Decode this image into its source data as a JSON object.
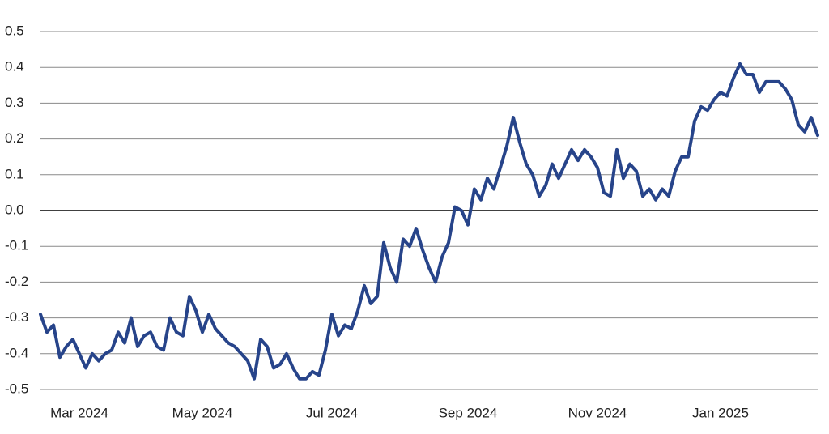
{
  "chart_data": {
    "type": "line",
    "categories": [
      null,
      null,
      null,
      null,
      null,
      null,
      "Mar 2024",
      null,
      null,
      null,
      null,
      null,
      null,
      null,
      null,
      null,
      null,
      null,
      null,
      null,
      null,
      null,
      null,
      null,
      null,
      "May 2024",
      null,
      null,
      null,
      null,
      null,
      null,
      null,
      null,
      null,
      null,
      null,
      null,
      null,
      null,
      null,
      null,
      null,
      null,
      null,
      "Jul 2024",
      null,
      null,
      null,
      null,
      null,
      null,
      null,
      null,
      null,
      null,
      null,
      null,
      null,
      null,
      null,
      null,
      null,
      null,
      null,
      null,
      "Sep 2024",
      null,
      null,
      null,
      null,
      null,
      null,
      null,
      null,
      null,
      null,
      null,
      null,
      null,
      null,
      null,
      null,
      null,
      null,
      null,
      "Nov 2024",
      null,
      null,
      null,
      null,
      null,
      null,
      null,
      null,
      null,
      null,
      null,
      null,
      null,
      null,
      null,
      null,
      null,
      null,
      "Jan 2025",
      null,
      null,
      null,
      null,
      null,
      null,
      null,
      null,
      null,
      null,
      null,
      null,
      null,
      null,
      null
    ],
    "values": [
      -0.29,
      -0.34,
      -0.32,
      -0.41,
      -0.38,
      -0.36,
      -0.4,
      -0.44,
      -0.4,
      -0.42,
      -0.4,
      -0.39,
      -0.34,
      -0.37,
      -0.3,
      -0.38,
      -0.35,
      -0.34,
      -0.38,
      -0.39,
      -0.3,
      -0.34,
      -0.35,
      -0.24,
      -0.28,
      -0.34,
      -0.29,
      -0.33,
      -0.35,
      -0.37,
      -0.38,
      -0.4,
      -0.42,
      -0.47,
      -0.36,
      -0.38,
      -0.44,
      -0.43,
      -0.4,
      -0.44,
      -0.47,
      -0.47,
      -0.45,
      -0.46,
      -0.39,
      -0.29,
      -0.35,
      -0.32,
      -0.33,
      -0.28,
      -0.21,
      -0.26,
      -0.24,
      -0.09,
      -0.16,
      -0.2,
      -0.08,
      -0.1,
      -0.05,
      -0.11,
      -0.16,
      -0.2,
      -0.13,
      -0.09,
      0.01,
      0.0,
      -0.04,
      0.06,
      0.03,
      0.09,
      0.06,
      0.12,
      0.18,
      0.26,
      0.19,
      0.13,
      0.1,
      0.04,
      0.07,
      0.13,
      0.09,
      0.13,
      0.17,
      0.14,
      0.17,
      0.15,
      0.12,
      0.05,
      0.04,
      0.17,
      0.09,
      0.13,
      0.11,
      0.04,
      0.06,
      0.03,
      0.06,
      0.04,
      0.11,
      0.15,
      0.15,
      0.25,
      0.29,
      0.28,
      0.31,
      0.33,
      0.32,
      0.37,
      0.41,
      0.38,
      0.38,
      0.33,
      0.36,
      0.36,
      0.36,
      0.34,
      0.31,
      0.24,
      0.22,
      0.26,
      0.21
    ],
    "color": "#27448a",
    "ylim": [
      -0.5,
      0.5
    ],
    "yticks": [
      -0.5,
      -0.4,
      -0.3,
      -0.2,
      -0.1,
      {
        "value": 0,
        "label": "0.0"
      },
      0.1,
      0.2,
      0.3,
      0.4,
      0.5
    ],
    "grid": true
  }
}
